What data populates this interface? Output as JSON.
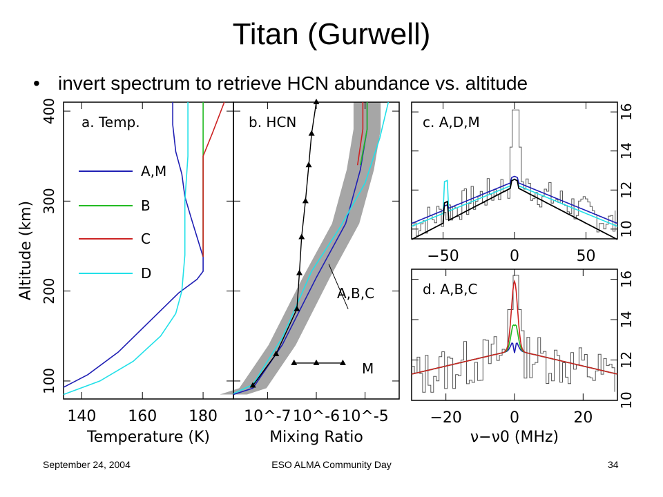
{
  "slide": {
    "title": "Titan (Gurwell)",
    "bullet": "invert spectrum to retrieve HCN abundance vs. altitude"
  },
  "footer": {
    "date": "September 24, 2004",
    "event": "ESO ALMA Community Day",
    "page": "34"
  },
  "colors": {
    "A_M": "#1f1fb4",
    "B": "#22bb22",
    "C": "#cc2222",
    "D": "#22e0e8",
    "M": "#000000",
    "envelope": "#a6a6a6"
  },
  "chart_data": [
    {
      "type": "line",
      "panel_label": "a. Temp.",
      "xlabel": "Temperature (K)",
      "ylabel": "Altitude (km)",
      "xlim": [
        134,
        190
      ],
      "ylim": [
        80,
        410
      ],
      "xticks": [
        140,
        160,
        180
      ],
      "yticks": [
        100,
        200,
        300,
        400
      ],
      "legend": [
        "A,M",
        "B",
        "C",
        "D"
      ],
      "series": [
        {
          "name": "A,M",
          "color": "#1f1fb4",
          "points": [
            [
              134,
              93
            ],
            [
              142,
              107
            ],
            [
              152,
              132
            ],
            [
              162,
              165
            ],
            [
              172,
              198
            ],
            [
              178,
              213
            ],
            [
              180,
              222
            ],
            [
              180,
              238
            ],
            [
              178,
              260
            ],
            [
              176,
              282
            ],
            [
              174,
              305
            ],
            [
              173,
              330
            ],
            [
              171,
              355
            ],
            [
              170,
              385
            ],
            [
              170,
              410
            ]
          ]
        },
        {
          "name": "B",
          "color": "#22bb22",
          "points": [
            [
              180,
              238
            ],
            [
              180,
              300
            ],
            [
              180,
              360
            ],
            [
              180,
              410
            ]
          ]
        },
        {
          "name": "C",
          "color": "#cc2222",
          "points": [
            [
              180,
              238
            ],
            [
              180,
              350
            ],
            [
              183,
              375
            ],
            [
              187,
              410
            ]
          ]
        },
        {
          "name": "D",
          "color": "#22e0e8",
          "points": [
            [
              134,
              85
            ],
            [
              146,
              100
            ],
            [
              157,
              122
            ],
            [
              166,
              150
            ],
            [
              171,
              175
            ],
            [
              173,
              200
            ],
            [
              174,
              240
            ],
            [
              174,
              300
            ],
            [
              175,
              350
            ],
            [
              175,
              410
            ]
          ]
        }
      ]
    },
    {
      "type": "line",
      "panel_label": "b. HCN",
      "xlabel": "Mixing Ratio",
      "ylabel": "Altitude (km)",
      "xscale": "log",
      "xlim": [
        2e-08,
        5e-05
      ],
      "ylim": [
        80,
        410
      ],
      "xtick_labels": [
        "10^-7",
        "10^-6",
        "10^-5"
      ],
      "annotations": [
        "A,B,C",
        "M"
      ],
      "series": [
        {
          "name": "A,M",
          "color": "#1f1fb4",
          "points": [
            [
              2e-08,
              85
            ],
            [
              5e-08,
              92
            ],
            [
              2e-07,
              140
            ],
            [
              1e-06,
              215
            ],
            [
              4e-06,
              275
            ],
            [
              8e-06,
              335
            ],
            [
              1.1e-05,
              380
            ],
            [
              1.1e-05,
              410
            ]
          ]
        },
        {
          "name": "B",
          "color": "#22bb22",
          "points": [
            [
              8e-06,
              340
            ],
            [
              1.1e-05,
              380
            ],
            [
              1.1e-05,
              410
            ]
          ]
        },
        {
          "name": "C",
          "color": "#cc2222",
          "points": [
            [
              7e-06,
              340
            ],
            [
              9e-06,
              380
            ],
            [
              9e-06,
              410
            ]
          ]
        },
        {
          "name": "D",
          "color": "#22e0e8",
          "points": [
            [
              2e-08,
              86
            ],
            [
              5e-08,
              96
            ],
            [
              2e-07,
              148
            ],
            [
              8e-07,
              222
            ],
            [
              3e-06,
              270
            ],
            [
              1e-05,
              320
            ],
            [
              2e-05,
              370
            ],
            [
              3e-05,
              410
            ]
          ]
        },
        {
          "name": "M",
          "color": "#000000",
          "points": [
            [
              5e-08,
              95
            ],
            [
              1.5e-07,
              130
            ],
            [
              4e-07,
              180
            ],
            [
              4.5e-07,
              220
            ],
            [
              5e-07,
              260
            ],
            [
              6e-07,
              300
            ],
            [
              7e-07,
              340
            ],
            [
              8e-07,
              375
            ],
            [
              1e-06,
              410
            ]
          ]
        },
        {
          "name": "M-horizontal",
          "color": "#000000",
          "points": [
            [
              3.5e-07,
              120
            ],
            [
              1e-06,
              120
            ],
            [
              3.5e-06,
              120
            ]
          ]
        }
      ]
    },
    {
      "type": "line",
      "panel_label": "c. A,D,M",
      "xlabel": "",
      "xlim": [
        -72,
        72
      ],
      "ylim": [
        9.5,
        16.5
      ],
      "xticks": [
        -50,
        0,
        50
      ],
      "yticks": [
        10,
        12,
        14,
        16
      ]
    },
    {
      "type": "line",
      "panel_label": "d. A,B,C",
      "xlabel": "ν−ν0 (MHz)",
      "xlim": [
        -30,
        30
      ],
      "ylim": [
        10,
        16.5
      ],
      "xticks": [
        -20,
        0,
        20
      ],
      "yticks": [
        10,
        12,
        14,
        16
      ]
    }
  ]
}
